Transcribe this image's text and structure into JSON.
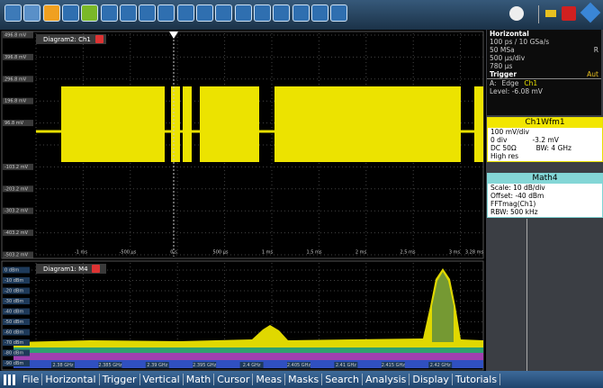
{
  "diagram_top": {
    "tab": "Diagram2: Ch1",
    "y_labels": [
      "496.8 mV",
      "396.8 mV",
      "296.8 mV",
      "196.8 mV",
      "96.8 mV",
      "-103.2 mV",
      "-203.2 mV",
      "-303.2 mV",
      "-403.2 mV",
      "-503.2 mV"
    ],
    "x_labels": [
      "-1 ms",
      "-500 µs",
      "0 s",
      "500 µs",
      "1 ms",
      "1.5 ms",
      "2 ms",
      "2.5 ms",
      "3 ms",
      "3.28 ms"
    ]
  },
  "diagram_bottom": {
    "tab": "Diagram1: M4",
    "y_labels": [
      "0 dBm",
      "-10 dBm",
      "-20 dBm",
      "-30 dBm",
      "-40 dBm",
      "-50 dBm",
      "-60 dBm",
      "-70 dBm",
      "-80 dBm",
      "-90 dBm"
    ],
    "x_labels": [
      "2.38 GHz",
      "2.385 GHz",
      "2.39 GHz",
      "2.395 GHz",
      "2.4 GHz",
      "2.405 GHz",
      "2.41 GHz",
      "2.415 GHz",
      "2.42 GHz"
    ]
  },
  "horizontal": {
    "title": "Horizontal",
    "rate": "100 ps / 10 GSa/s",
    "rate_suffix": "R",
    "samples": "50 MSa",
    "scale": "500 µs/div",
    "position": "780 µs"
  },
  "trigger": {
    "title": "Trigger",
    "mode": "Aut",
    "source_prefix": "A:",
    "type": "Edge",
    "source": "Ch1",
    "level": "Level: -6.08 mV"
  },
  "ch1": {
    "title": "Ch1Wfm1",
    "scale": "100 mV/div",
    "offset_div": "0 div",
    "offset": "-3.2 mV",
    "coupling": "DC 50Ω",
    "bandwidth": "BW: 4 GHz",
    "mode": "High res"
  },
  "math4": {
    "title": "Math4",
    "scale": "Scale: 10 dB/div",
    "offset": "Offset: -40 dBm",
    "function": "FFTmag(Ch1)",
    "rbw": "RBW: 500 kHz"
  },
  "menu": [
    "File",
    "Horizontal",
    "Trigger",
    "Vertical",
    "Math",
    "Cursor",
    "Meas",
    "Masks",
    "Search",
    "Analysis",
    "Display",
    "Tutorials"
  ]
}
